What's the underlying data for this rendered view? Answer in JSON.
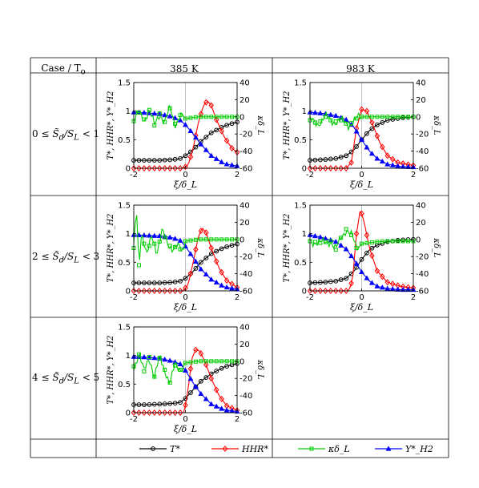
{
  "table": {
    "header_case": "Case / T",
    "header_case_sub": "o",
    "col_385": "385 K",
    "col_983": "983 K",
    "row_labels": [
      {
        "pre": "0 ≤ ",
        "mid": "S̃",
        "sub": "d",
        "post": "/S",
        "sub2": "L",
        "tail": " < 1"
      },
      {
        "pre": "2 ≤ ",
        "mid": "S̃",
        "sub": "d",
        "post": "/S",
        "sub2": "L",
        "tail": " < 3"
      },
      {
        "pre": "4 ≤ ",
        "mid": "S̃",
        "sub": "d",
        "post": "/S",
        "sub2": "L",
        "tail": " < 5"
      }
    ]
  },
  "legend": {
    "items": [
      {
        "label": "T*",
        "color": "#000000",
        "marker": "circle"
      },
      {
        "label": "HHR*",
        "color": "#ff0000",
        "marker": "diamond"
      },
      {
        "label": "κδ_L",
        "color": "#00cc00",
        "marker": "square"
      },
      {
        "label": "Y*_H2",
        "color": "#0000ff",
        "marker": "triangle"
      }
    ]
  },
  "chart_data": [
    {
      "type": "line",
      "case": "0 ≤ S̃d/SL < 1",
      "temperature": "385 K",
      "xlabel": "ξ/δ_L",
      "ylabel": "T*, HHR*, Y*_H2",
      "y2label": "κδ_L",
      "xlim": [
        -2,
        2
      ],
      "ylim": [
        0,
        1.5
      ],
      "y2lim": [
        -60,
        40
      ],
      "xticks": [
        "-2",
        "0",
        "2"
      ],
      "yticks": [
        "0",
        "0.5",
        "1",
        "1.5"
      ],
      "y2ticks": [
        "-60",
        "-40",
        "-20",
        "0",
        "20",
        "40"
      ],
      "series": [
        {
          "name": "T*",
          "x": [
            -2,
            -1.5,
            -1,
            -0.5,
            -0.2,
            0,
            0.3,
            0.6,
            1,
            1.5,
            2
          ],
          "values": [
            0.14,
            0.14,
            0.14,
            0.15,
            0.17,
            0.22,
            0.32,
            0.47,
            0.62,
            0.74,
            0.81
          ]
        },
        {
          "name": "HHR*",
          "x": [
            -2,
            -1,
            -0.1,
            0.1,
            0.3,
            0.5,
            0.7,
            0.85,
            1.0,
            1.2,
            1.5,
            1.8,
            2
          ],
          "values": [
            0,
            0,
            0,
            0.05,
            0.35,
            0.8,
            1.1,
            1.18,
            1.1,
            0.85,
            0.55,
            0.35,
            0.28
          ]
        },
        {
          "name": "Y*_H2",
          "x": [
            -2,
            -1.5,
            -1,
            -0.5,
            -0.2,
            0,
            0.3,
            0.6,
            1,
            1.5,
            2
          ],
          "values": [
            0.98,
            0.97,
            0.95,
            0.9,
            0.84,
            0.76,
            0.6,
            0.42,
            0.22,
            0.08,
            0.04
          ]
        },
        {
          "name": "κδ_L",
          "x": [
            -2,
            -1.8,
            -1.6,
            -1.4,
            -1.2,
            -1.0,
            -0.8,
            -0.6,
            -0.4,
            -0.2,
            0,
            0.5,
            1,
            1.5,
            2
          ],
          "values": [
            -5,
            5,
            -3,
            8,
            -10,
            4,
            -6,
            10,
            -8,
            2,
            -2,
            0,
            0,
            0,
            0
          ]
        }
      ]
    },
    {
      "type": "line",
      "case": "0 ≤ S̃d/SL < 1",
      "temperature": "983 K",
      "xlabel": "ξ/δ_L",
      "ylabel": "T*, HHR*, Y*_H2",
      "y2label": "κδ_L",
      "xlim": [
        -2,
        2
      ],
      "ylim": [
        0,
        1.5
      ],
      "y2lim": [
        -60,
        40
      ],
      "xticks": [
        "-2",
        "0",
        "2"
      ],
      "yticks": [
        "0",
        "0.5",
        "1",
        "1.5"
      ],
      "y2ticks": [
        "-60",
        "-40",
        "-20",
        "0",
        "20",
        "40"
      ],
      "series": [
        {
          "name": "T*",
          "x": [
            -2,
            -1.5,
            -1,
            -0.6,
            -0.3,
            0,
            0.3,
            0.6,
            1,
            1.5,
            2
          ],
          "values": [
            0.14,
            0.15,
            0.17,
            0.22,
            0.32,
            0.5,
            0.66,
            0.76,
            0.84,
            0.88,
            0.9
          ]
        },
        {
          "name": "HHR*",
          "x": [
            -2,
            -0.6,
            -0.4,
            -0.2,
            0,
            0.2,
            0.4,
            0.7,
            1.0,
            1.4,
            2
          ],
          "values": [
            0,
            0,
            0.1,
            0.7,
            1.03,
            1.0,
            0.8,
            0.45,
            0.22,
            0.1,
            0.05
          ]
        },
        {
          "name": "Y*_H2",
          "x": [
            -2,
            -1.5,
            -1,
            -0.6,
            -0.3,
            0,
            0.3,
            0.6,
            1,
            1.5,
            2
          ],
          "values": [
            0.98,
            0.96,
            0.92,
            0.85,
            0.72,
            0.5,
            0.3,
            0.17,
            0.07,
            0.03,
            0.02
          ]
        },
        {
          "name": "κδ_L",
          "x": [
            -2,
            -1.7,
            -1.4,
            -1.1,
            -0.8,
            -0.5,
            -0.2,
            0,
            0.5,
            1,
            1.5,
            2
          ],
          "values": [
            -4,
            -8,
            0,
            -6,
            -4,
            -10,
            -2,
            0,
            0,
            0,
            0,
            0
          ]
        }
      ]
    },
    {
      "type": "line",
      "case": "2 ≤ S̃d/SL < 3",
      "temperature": "385 K",
      "xlabel": "ξ/δ_L",
      "ylabel": "T*, HHR*, Y*_H2",
      "y2label": "κδ_L",
      "xlim": [
        -2,
        2
      ],
      "ylim": [
        0,
        1.5
      ],
      "y2lim": [
        -60,
        40
      ],
      "xticks": [
        "-2",
        "0",
        "2"
      ],
      "yticks": [
        "0",
        "0.5",
        "1",
        "1.5"
      ],
      "y2ticks": [
        "-60",
        "-40",
        "-20",
        "0",
        "20",
        "40"
      ],
      "series": [
        {
          "name": "T*",
          "x": [
            -2,
            -1.5,
            -1,
            -0.5,
            -0.2,
            0,
            0.3,
            0.6,
            1,
            1.5,
            2
          ],
          "values": [
            0.14,
            0.14,
            0.14,
            0.15,
            0.17,
            0.22,
            0.34,
            0.5,
            0.65,
            0.76,
            0.82
          ]
        },
        {
          "name": "HHR*",
          "x": [
            -2,
            -0.1,
            0.1,
            0.3,
            0.5,
            0.65,
            0.8,
            1.0,
            1.3,
            1.6,
            2
          ],
          "values": [
            0,
            0,
            0.1,
            0.5,
            0.95,
            1.1,
            1.02,
            0.75,
            0.4,
            0.18,
            0.06
          ]
        },
        {
          "name": "Y*_H2",
          "x": [
            -2,
            -1.5,
            -1,
            -0.5,
            -0.2,
            0,
            0.3,
            0.6,
            1,
            1.5,
            2
          ],
          "values": [
            0.98,
            0.97,
            0.96,
            0.93,
            0.88,
            0.78,
            0.58,
            0.38,
            0.2,
            0.07,
            0.03
          ]
        },
        {
          "name": "κδ_L",
          "x": [
            -2,
            -1.9,
            -1.8,
            -1.7,
            -1.5,
            -1.3,
            -1.1,
            -0.9,
            -0.7,
            -0.5,
            -0.3,
            -0.1,
            0,
            0.5,
            1,
            1.5,
            2
          ],
          "values": [
            -10,
            40,
            -30,
            10,
            -20,
            5,
            -15,
            10,
            -5,
            -10,
            -8,
            -15,
            -2,
            0,
            0,
            0,
            0
          ]
        }
      ]
    },
    {
      "type": "line",
      "case": "2 ≤ S̃d/SL < 3",
      "temperature": "983 K",
      "xlabel": "ξ/δ_L",
      "ylabel": "T*, HHR*, Y*_H2",
      "y2label": "κδ_L",
      "xlim": [
        -2,
        2
      ],
      "ylim": [
        0,
        1.5
      ],
      "y2lim": [
        -60,
        40
      ],
      "xticks": [
        "-2",
        "0",
        "2"
      ],
      "yticks": [
        "0",
        "0.5",
        "1",
        "1.5"
      ],
      "y2ticks": [
        "-60",
        "-40",
        "-20",
        "0",
        "20",
        "40"
      ],
      "series": [
        {
          "name": "T*",
          "x": [
            -2,
            -1.5,
            -1,
            -0.6,
            -0.3,
            0,
            0.3,
            0.6,
            1,
            1.5,
            2
          ],
          "values": [
            0.14,
            0.15,
            0.17,
            0.22,
            0.34,
            0.55,
            0.72,
            0.8,
            0.86,
            0.89,
            0.9
          ]
        },
        {
          "name": "HHR*",
          "x": [
            -2,
            -0.5,
            -0.35,
            -0.2,
            -0.05,
            0.1,
            0.3,
            0.6,
            1.0,
            1.5,
            2
          ],
          "values": [
            0,
            0,
            0.2,
            1.0,
            1.43,
            1.2,
            0.75,
            0.35,
            0.15,
            0.08,
            0.05
          ]
        },
        {
          "name": "Y*_H2",
          "x": [
            -2,
            -1.5,
            -1,
            -0.6,
            -0.3,
            0,
            0.3,
            0.6,
            1,
            1.5,
            2
          ],
          "values": [
            0.98,
            0.93,
            0.86,
            0.73,
            0.55,
            0.33,
            0.17,
            0.08,
            0.04,
            0.02,
            0.02
          ]
        },
        {
          "name": "κδ_L",
          "x": [
            -2,
            -1.6,
            -1.2,
            -1.0,
            -0.8,
            -0.6,
            -0.4,
            -0.2,
            0,
            0.5,
            1,
            1.5,
            2
          ],
          "values": [
            -2,
            -4,
            -2,
            -12,
            2,
            12,
            5,
            -10,
            -5,
            -3,
            -2,
            -2,
            -2
          ]
        }
      ]
    },
    {
      "type": "line",
      "case": "4 ≤ S̃d/SL < 5",
      "temperature": "385 K",
      "xlabel": "ξ/δ_L",
      "ylabel": "T*, HHR*, Y*_H2",
      "y2label": "κδ_L",
      "xlim": [
        -2,
        2
      ],
      "ylim": [
        0,
        1.5
      ],
      "y2lim": [
        -60,
        40
      ],
      "xticks": [
        "-2",
        "0",
        "2"
      ],
      "yticks": [
        "0",
        "0.5",
        "1",
        "1.5"
      ],
      "y2ticks": [
        "-60",
        "-40",
        "-20",
        "0",
        "20",
        "40"
      ],
      "series": [
        {
          "name": "T*",
          "x": [
            -2,
            -1.5,
            -1,
            -0.5,
            -0.2,
            0,
            0.3,
            0.6,
            1,
            1.5,
            2
          ],
          "values": [
            0.14,
            0.14,
            0.15,
            0.16,
            0.18,
            0.25,
            0.4,
            0.55,
            0.68,
            0.8,
            0.86
          ]
        },
        {
          "name": "HHR*",
          "x": [
            -2,
            -0.05,
            0.1,
            0.25,
            0.4,
            0.55,
            0.75,
            1.0,
            1.3,
            1.6,
            2
          ],
          "values": [
            0,
            0,
            0.4,
            0.95,
            1.1,
            1.08,
            0.9,
            0.6,
            0.3,
            0.12,
            0.04
          ]
        },
        {
          "name": "Y*_H2",
          "x": [
            -2,
            -1.5,
            -1,
            -0.5,
            -0.2,
            0,
            0.3,
            0.6,
            1,
            1.5,
            2
          ],
          "values": [
            0.98,
            0.97,
            0.95,
            0.9,
            0.85,
            0.74,
            0.52,
            0.33,
            0.15,
            0.05,
            0.02
          ]
        },
        {
          "name": "κδ_L",
          "x": [
            -2,
            -1.8,
            -1.6,
            -1.4,
            -1.2,
            -1.0,
            -0.8,
            -0.6,
            -0.4,
            -0.2,
            0,
            0.5,
            1,
            1.5,
            2
          ],
          "values": [
            -6,
            8,
            -12,
            5,
            -18,
            4,
            -10,
            -25,
            -5,
            -10,
            -2,
            0,
            0,
            0,
            0
          ]
        }
      ]
    }
  ]
}
